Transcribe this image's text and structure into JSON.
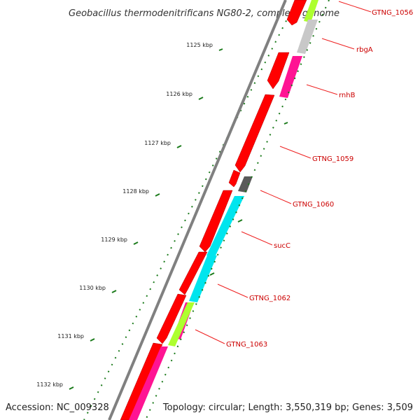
{
  "title": "Geobacillus thermodenitrificans NG80-2, complete genome",
  "footer": {
    "accession": "Accession: NC_009328",
    "topology": "Topology: circular; Length: 3,550,319 bp; Genes: 3,509"
  },
  "kbp_ticks": [
    "1125 kbp",
    "1126 kbp",
    "1127 kbp",
    "1128 kbp",
    "1129 kbp",
    "1130 kbp",
    "1131 kbp",
    "1132 kbp"
  ],
  "genes": [
    "GTNG_1056",
    "rbgA",
    "rnhB",
    "GTNG_1059",
    "GTNG_1060",
    "sucC",
    "GTNG_1062",
    "GTNG_1063"
  ],
  "colors": {
    "backbone": "#808080",
    "cds": "#ff0000",
    "cog_grey": "#c8c8c8",
    "cog_magenta": "#ff1493",
    "cog_dark": "#5a5a5a",
    "cog_cyan": "#00e5ee",
    "cog_lime": "#adff2f",
    "tick_green": "#1a7a1a",
    "label_red": "#cc0000"
  }
}
